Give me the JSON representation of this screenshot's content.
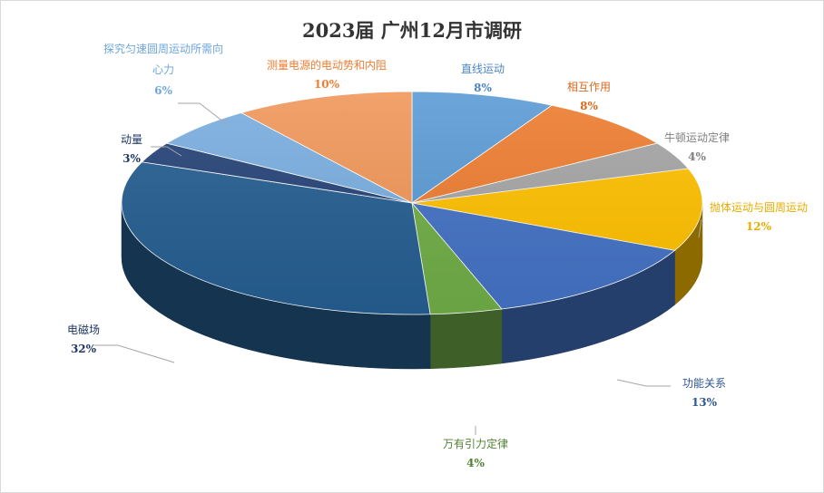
{
  "chart_data": {
    "type": "pie",
    "title": "2023届 广州12月市调研",
    "slices": [
      {
        "label": "直线运动",
        "value": 8,
        "display": "8%",
        "color": "#5b9bd5",
        "label_color": "#4a86c5"
      },
      {
        "label": "相互作用",
        "value": 8,
        "display": "8%",
        "color": "#ed7d31",
        "label_color": "#d86a1e"
      },
      {
        "label": "牛顿运动定律",
        "value": 4,
        "display": "4%",
        "color": "#a5a5a5",
        "label_color": "#7f7f7f"
      },
      {
        "label": "抛体运动与圆周运动",
        "value": 12,
        "display": "12%",
        "color": "#ffc000",
        "label_color": "#e6ac00"
      },
      {
        "label": "功能关系",
        "value": 13,
        "display": "13%",
        "color": "#4472c4",
        "label_color": "#2f5597"
      },
      {
        "label": "万有引力定律",
        "value": 4,
        "display": "4%",
        "color": "#70ad47",
        "label_color": "#548235"
      },
      {
        "label": "电磁场",
        "value": 32,
        "display": "32%",
        "color": "#255e91",
        "label_color": "#1f3864"
      },
      {
        "label": "动量",
        "value": 3,
        "display": "3%",
        "color": "#264478",
        "label_color": "#1f3864"
      },
      {
        "label": "探究匀速圆周运动所需向心力",
        "value": 6,
        "display": "6%",
        "color": "#7aaee0",
        "label_color": "#6ea6dc"
      },
      {
        "label": "测量电源的电动势和内阻",
        "value": 10,
        "display": "10%",
        "color": "#f0975a",
        "label_color": "#ed7d31"
      }
    ]
  }
}
